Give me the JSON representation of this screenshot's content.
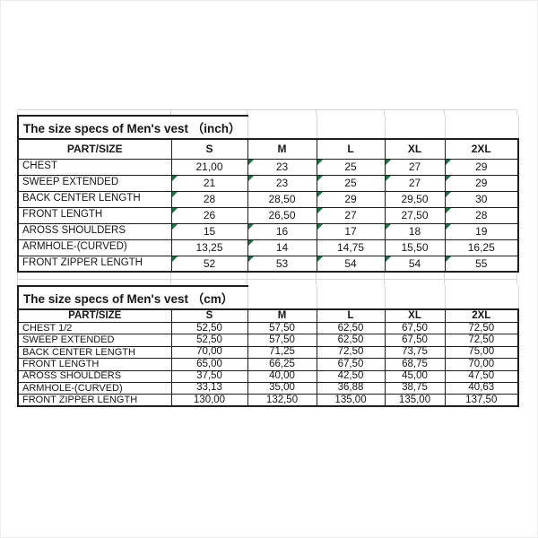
{
  "colors": {
    "table_border": "#1f1f1f",
    "faint_gridline": "#d6d6d6",
    "flag_triangle_green": "#1e7145",
    "background": "#ffffff"
  },
  "tables": [
    {
      "title": "The size specs of Men's vest （inch）",
      "columns": [
        "PART/SIZE",
        "S",
        "M",
        "L",
        "XL",
        "2XL"
      ],
      "rows": [
        {
          "label": "CHEST",
          "values": [
            "21,00",
            "23",
            "25",
            "27",
            "29"
          ],
          "flags": [
            0,
            1,
            1,
            1,
            1
          ]
        },
        {
          "label": "SWEEP EXTENDED",
          "values": [
            "21",
            "23",
            "25",
            "27",
            "29"
          ],
          "flags": [
            1,
            1,
            1,
            1,
            1
          ]
        },
        {
          "label": "BACK CENTER LENGTH",
          "values": [
            "28",
            "28,50",
            "29",
            "29,50",
            "30"
          ],
          "flags": [
            1,
            0,
            1,
            0,
            1
          ]
        },
        {
          "label": "FRONT LENGTH",
          "values": [
            "26",
            "26,50",
            "27",
            "27,50",
            "28"
          ],
          "flags": [
            1,
            0,
            1,
            0,
            1
          ]
        },
        {
          "label": "AROSS SHOULDERS",
          "values": [
            "15",
            "16",
            "17",
            "18",
            "19"
          ],
          "flags": [
            1,
            1,
            1,
            1,
            1
          ]
        },
        {
          "label": "ARMHOLE-(CURVED)",
          "values": [
            "13,25",
            "14",
            "14,75",
            "15,50",
            "16,25"
          ],
          "flags": [
            0,
            1,
            0,
            0,
            0
          ]
        },
        {
          "label": "FRONT ZIPPER LENGTH",
          "values": [
            "52",
            "53",
            "54",
            "54",
            "55"
          ],
          "flags": [
            1,
            1,
            1,
            1,
            1
          ]
        }
      ]
    },
    {
      "title": "The size specs of Men's vest （cm）",
      "columns": [
        "PART/SIZE",
        "S",
        "M",
        "L",
        "XL",
        "2XL"
      ],
      "rows": [
        {
          "label": "CHEST 1/2",
          "values": [
            "52,50",
            "57,50",
            "62,50",
            "67,50",
            "72,50"
          ]
        },
        {
          "label": "SWEEP EXTENDED",
          "values": [
            "52,50",
            "57,50",
            "62,50",
            "67,50",
            "72,50"
          ]
        },
        {
          "label": "BACK CENTER LENGTH",
          "values": [
            "70,00",
            "71,25",
            "72,50",
            "73,75",
            "75,00"
          ]
        },
        {
          "label": "FRONT LENGTH",
          "values": [
            "65,00",
            "66,25",
            "67,50",
            "68,75",
            "70,00"
          ]
        },
        {
          "label": "AROSS SHOULDERS",
          "values": [
            "37,50",
            "40,00",
            "42,50",
            "45,00",
            "47,50"
          ]
        },
        {
          "label": "ARMHOLE-(CURVED)",
          "values": [
            "33,13",
            "35,00",
            "36,88",
            "38,75",
            "40,63"
          ]
        },
        {
          "label": "FRONT ZIPPER LENGTH",
          "values": [
            "130,00",
            "132,50",
            "135,00",
            "135,00",
            "137,50"
          ]
        }
      ]
    }
  ]
}
